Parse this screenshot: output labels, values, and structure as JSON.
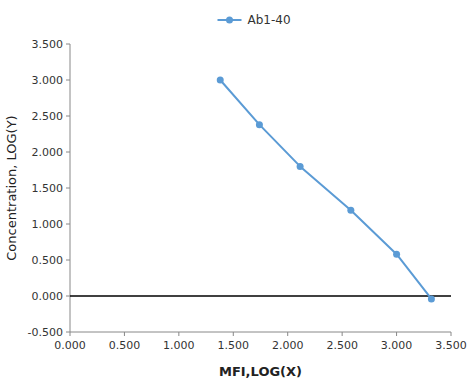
{
  "chart_data": {
    "type": "line",
    "x": [
      1.38,
      1.74,
      2.114,
      2.58,
      3.0,
      3.32
    ],
    "series": [
      {
        "name": "Ab1-40",
        "color": "#5b9bd5",
        "marker": "circle",
        "values": [
          3.0,
          2.38,
          1.8,
          1.19,
          0.58,
          -0.04
        ]
      }
    ],
    "xlabel": "MFI,LOG(X)",
    "ylabel": "Concentration, LOG(Y)",
    "xlim": [
      0.0,
      3.5
    ],
    "ylim": [
      -0.5,
      3.5
    ],
    "xticks": [
      {
        "value": 0.0,
        "label": "0.000"
      },
      {
        "value": 0.5,
        "label": "0.500"
      },
      {
        "value": 1.0,
        "label": "1.000"
      },
      {
        "value": 1.5,
        "label": "1.500"
      },
      {
        "value": 2.0,
        "label": "2.000"
      },
      {
        "value": 2.5,
        "label": "2.500"
      },
      {
        "value": 3.0,
        "label": "3.000"
      },
      {
        "value": 3.5,
        "label": "3.500"
      }
    ],
    "yticks": [
      {
        "value": -0.5,
        "label": "-0.500"
      },
      {
        "value": 0.0,
        "label": "0.000"
      },
      {
        "value": 0.5,
        "label": "0.500"
      },
      {
        "value": 1.0,
        "label": "1.000"
      },
      {
        "value": 1.5,
        "label": "1.500"
      },
      {
        "value": 2.0,
        "label": "2.000"
      },
      {
        "value": 2.5,
        "label": "2.500"
      },
      {
        "value": 3.0,
        "label": "3.000"
      },
      {
        "value": 3.5,
        "label": "3.500"
      }
    ],
    "reference_lines": [
      {
        "y": 0,
        "color": "#000000"
      }
    ],
    "grid": false,
    "legend": "top"
  }
}
